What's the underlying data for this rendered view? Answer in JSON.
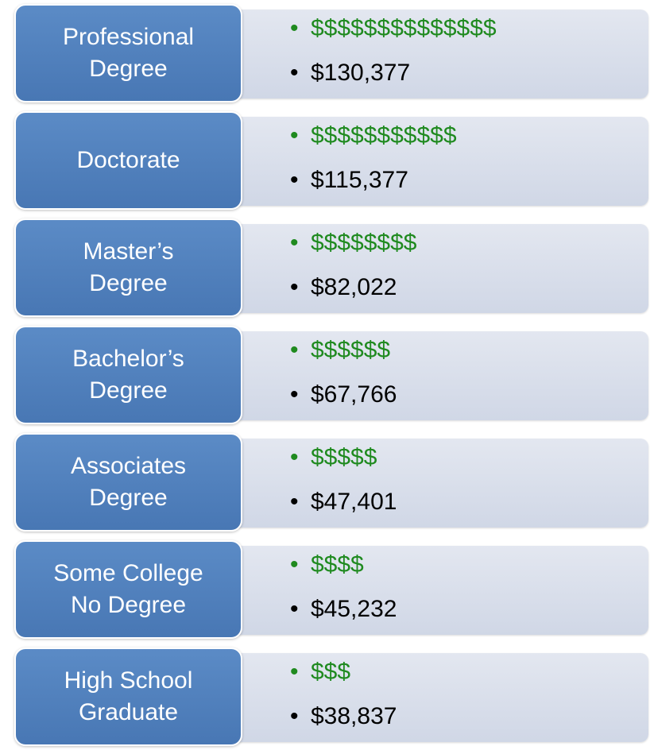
{
  "items": [
    {
      "label": [
        "Professional",
        "Degree"
      ],
      "bar": "$$$$$$$$$$$$$$",
      "amount": "$130,377"
    },
    {
      "label": [
        "Doctorate"
      ],
      "bar": "$$$$$$$$$$$",
      "amount": "$115,377"
    },
    {
      "label": [
        "Master’s",
        "Degree"
      ],
      "bar": "$$$$$$$$",
      "amount": "$82,022"
    },
    {
      "label": [
        "Bachelor’s",
        "Degree"
      ],
      "bar": "$$$$$$",
      "amount": "$67,766"
    },
    {
      "label": [
        "Associates",
        "Degree"
      ],
      "bar": "$$$$$",
      "amount": "$47,401"
    },
    {
      "label": [
        "Some College",
        "No Degree"
      ],
      "bar": "$$$$",
      "amount": "$45,232"
    },
    {
      "label": [
        "High School",
        "Graduate"
      ],
      "bar": "$$$",
      "amount": "$38,837"
    }
  ]
}
